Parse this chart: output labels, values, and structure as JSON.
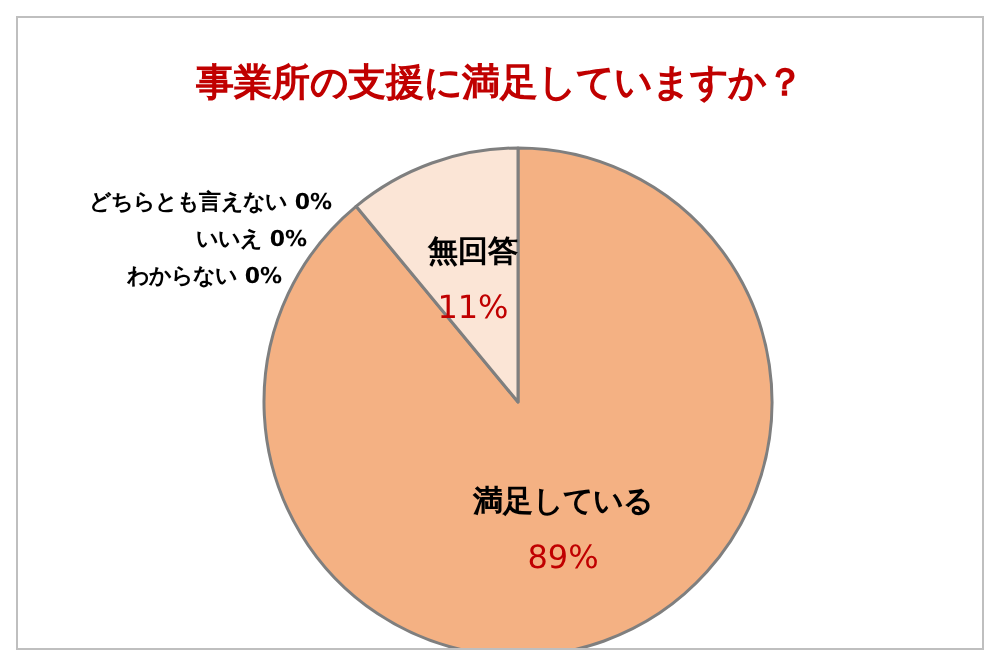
{
  "chart_data": {
    "type": "pie",
    "title": "事業所の支援に満足していますか？",
    "categories": [
      "満足している",
      "わからない",
      "いいえ",
      "どちらとも言えない",
      "無回答"
    ],
    "values": [
      89,
      0,
      0,
      0,
      11
    ],
    "value_labels": [
      "89%",
      "0%",
      "0%",
      "0%",
      "11%"
    ],
    "colors": [
      "#f4b183",
      "#f4b183",
      "#f4b183",
      "#f4b183",
      "#fbe5d6"
    ],
    "legend": false
  }
}
